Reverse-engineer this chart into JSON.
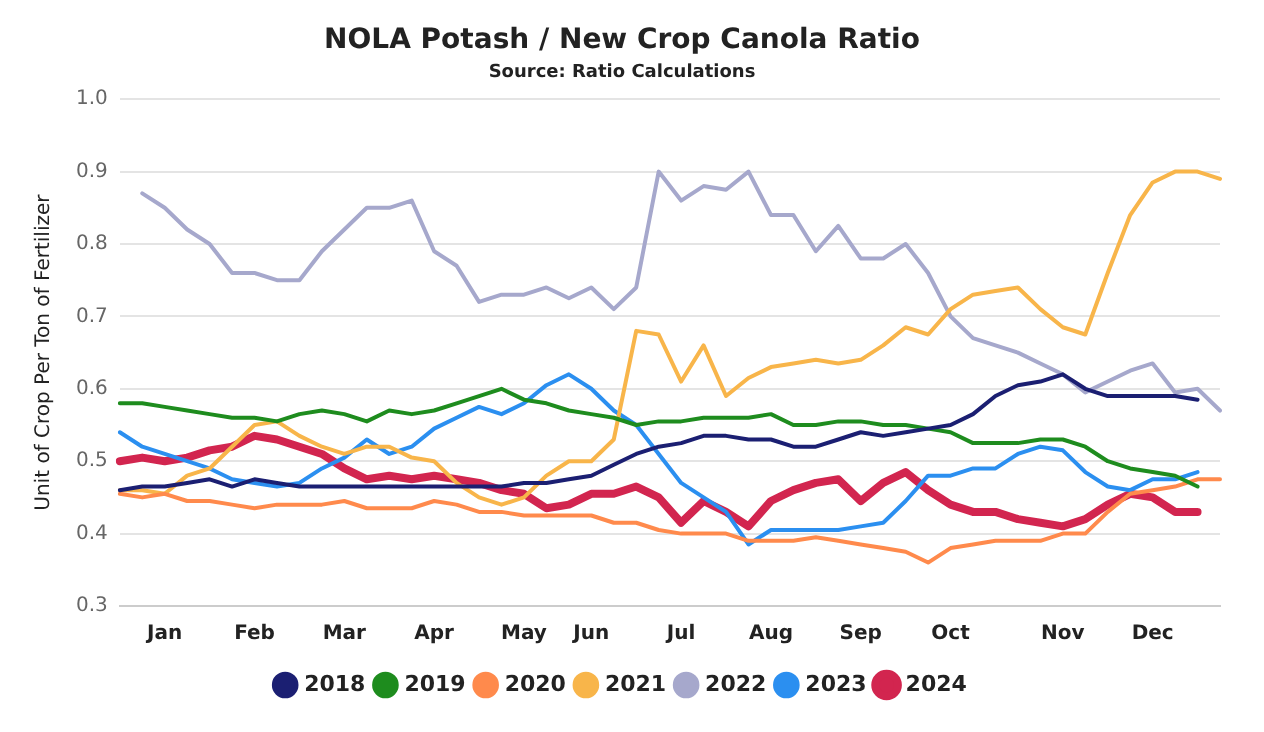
{
  "chart_data": {
    "type": "line",
    "title": "NOLA Potash / New Crop Canola Ratio",
    "subtitle": "Source: Ratio Calculations",
    "ylabel": "Unit of Crop Per Ton of Fertilizer",
    "categories": [
      null,
      null,
      "Jan",
      null,
      null,
      null,
      "Feb",
      null,
      null,
      null,
      "Mar",
      null,
      null,
      null,
      "Apr",
      null,
      null,
      null,
      "May",
      null,
      null,
      "Jun",
      null,
      null,
      null,
      "Jul",
      null,
      null,
      null,
      "Aug",
      null,
      null,
      null,
      "Sep",
      null,
      null,
      null,
      "Oct",
      null,
      null,
      null,
      null,
      "Nov",
      null,
      null,
      null,
      "Dec",
      null,
      null,
      null
    ],
    "series": [
      {
        "name": "2018",
        "color": "#1b1f72",
        "values": [
          0.46,
          0.465,
          0.465,
          0.47,
          0.475,
          0.465,
          0.475,
          0.47,
          0.465,
          0.465,
          0.465,
          0.465,
          0.465,
          0.465,
          0.465,
          0.465,
          0.465,
          0.465,
          0.47,
          0.47,
          0.475,
          0.48,
          0.495,
          0.51,
          0.52,
          0.525,
          0.535,
          0.535,
          0.53,
          0.53,
          0.52,
          0.52,
          0.53,
          0.54,
          0.535,
          0.54,
          0.545,
          0.55,
          0.565,
          0.59,
          0.605,
          0.61,
          0.62,
          0.6,
          0.59,
          0.59,
          0.59,
          0.59,
          0.585,
          null
        ]
      },
      {
        "name": "2019",
        "color": "#1e8c1e",
        "values": [
          0.58,
          0.58,
          0.575,
          0.57,
          0.565,
          0.56,
          0.56,
          0.555,
          0.565,
          0.57,
          0.565,
          0.555,
          0.57,
          0.565,
          0.57,
          0.58,
          0.59,
          0.6,
          0.585,
          0.58,
          0.57,
          0.565,
          0.56,
          0.55,
          0.555,
          0.555,
          0.56,
          0.56,
          0.56,
          0.565,
          0.55,
          0.55,
          0.555,
          0.555,
          0.55,
          0.55,
          0.545,
          0.54,
          0.525,
          0.525,
          0.525,
          0.53,
          0.53,
          0.52,
          0.5,
          0.49,
          0.485,
          0.48,
          0.465,
          null
        ]
      },
      {
        "name": "2020",
        "color": "#ff8a4c",
        "values": [
          0.455,
          0.45,
          0.455,
          0.445,
          0.445,
          0.44,
          0.435,
          0.44,
          0.44,
          0.44,
          0.445,
          0.435,
          0.435,
          0.435,
          0.445,
          0.44,
          0.43,
          0.43,
          0.425,
          0.425,
          0.425,
          0.425,
          0.415,
          0.415,
          0.405,
          0.4,
          0.4,
          0.4,
          0.39,
          0.39,
          0.39,
          0.395,
          0.39,
          0.385,
          0.38,
          0.375,
          0.36,
          0.38,
          0.385,
          0.39,
          0.39,
          0.39,
          0.4,
          0.4,
          0.43,
          0.455,
          0.46,
          0.465,
          0.475,
          0.475
        ]
      },
      {
        "name": "2021",
        "color": "#f8b54a",
        "values": [
          0.46,
          0.46,
          0.455,
          0.48,
          0.49,
          0.52,
          0.55,
          0.555,
          0.535,
          0.52,
          0.51,
          0.52,
          0.52,
          0.505,
          0.5,
          0.47,
          0.45,
          0.44,
          0.45,
          0.48,
          0.5,
          0.5,
          0.53,
          0.68,
          0.675,
          0.61,
          0.66,
          0.59,
          0.615,
          0.63,
          0.635,
          0.64,
          0.635,
          0.64,
          0.66,
          0.685,
          0.675,
          0.71,
          0.73,
          0.735,
          0.74,
          0.71,
          0.685,
          0.675,
          0.76,
          0.84,
          0.885,
          0.9,
          0.9,
          0.89
        ]
      },
      {
        "name": "2022",
        "color": "#a6a8cc",
        "values": [
          null,
          0.87,
          0.85,
          0.82,
          0.8,
          0.76,
          0.76,
          0.75,
          0.75,
          0.79,
          0.82,
          0.85,
          0.85,
          0.86,
          0.79,
          0.77,
          0.72,
          0.73,
          0.73,
          0.74,
          0.725,
          0.74,
          0.71,
          0.74,
          0.9,
          0.86,
          0.88,
          0.875,
          0.9,
          0.84,
          0.84,
          0.79,
          0.825,
          0.78,
          0.78,
          0.8,
          0.76,
          0.7,
          0.67,
          0.66,
          0.65,
          0.635,
          0.62,
          0.595,
          0.61,
          0.625,
          0.635,
          0.595,
          0.6,
          0.57
        ]
      },
      {
        "name": "2023",
        "color": "#2b8ff0",
        "values": [
          0.54,
          0.52,
          0.51,
          0.5,
          0.49,
          0.475,
          0.47,
          0.465,
          0.47,
          0.49,
          0.505,
          0.53,
          0.51,
          0.52,
          0.545,
          0.56,
          0.575,
          0.565,
          0.58,
          0.605,
          0.62,
          0.6,
          0.57,
          0.55,
          0.51,
          0.47,
          0.45,
          0.43,
          0.385,
          0.405,
          0.405,
          0.405,
          0.405,
          0.41,
          0.415,
          0.445,
          0.48,
          0.48,
          0.49,
          0.49,
          0.51,
          0.52,
          0.515,
          0.485,
          0.465,
          0.46,
          0.475,
          0.475,
          0.485,
          null
        ]
      },
      {
        "name": "2024",
        "color": "#d2254f",
        "values": [
          0.5,
          0.505,
          0.5,
          0.505,
          0.515,
          0.52,
          0.535,
          0.53,
          0.52,
          0.51,
          0.49,
          0.475,
          0.48,
          0.475,
          0.48,
          0.475,
          0.47,
          0.46,
          0.455,
          0.435,
          0.44,
          0.455,
          0.455,
          0.465,
          0.45,
          0.415,
          0.445,
          0.43,
          0.41,
          0.445,
          0.46,
          0.47,
          0.475,
          0.445,
          0.47,
          0.485,
          0.46,
          0.44,
          0.43,
          0.43,
          0.42,
          0.415,
          0.41,
          0.42,
          0.44,
          0.455,
          0.45,
          0.43,
          0.43,
          null
        ]
      }
    ],
    "ylim": [
      0.3,
      1.0
    ],
    "yticks": [
      0.3,
      0.4,
      0.5,
      0.6,
      0.7,
      0.8,
      0.9,
      {
        "value": 1.0,
        "label": "1.0"
      }
    ],
    "grid": "y",
    "legend": "bottom",
    "marker": "none",
    "line_style": "solid"
  }
}
